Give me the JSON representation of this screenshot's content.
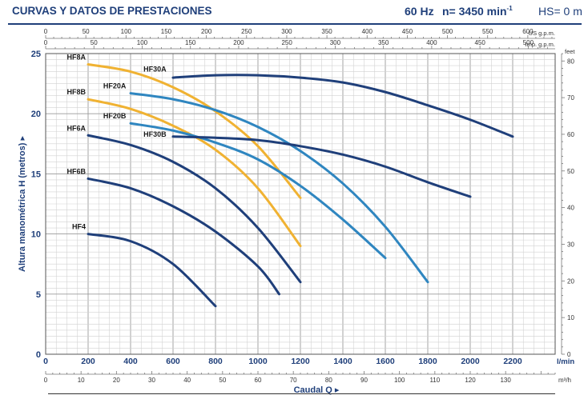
{
  "header": {
    "title": "CURVAS Y DATOS DE PRESTACIONES",
    "frequency": "60 Hz",
    "speed_prefix": "n= 3450 min",
    "speed_exp": "-1",
    "hs": "HS= 0 m"
  },
  "chart_data": {
    "type": "line",
    "title": "CURVAS Y DATOS DE PRESTACIONES",
    "xlabel": "Caudal Q ▸",
    "ylabel": "Altura manométrica H (metros) ▸",
    "xunit": "l/min",
    "xlim": [
      0,
      2400
    ],
    "ylim": [
      0,
      25
    ],
    "grid": true,
    "x_ticks": [
      0,
      200,
      400,
      600,
      800,
      1000,
      1200,
      1400,
      1600,
      1800,
      2000,
      2200
    ],
    "y_ticks": [
      0,
      5,
      10,
      15,
      20,
      25
    ],
    "right_axis": {
      "unit": "feet",
      "ticks": [
        0,
        10,
        20,
        30,
        40,
        50,
        60,
        70,
        80
      ],
      "labels": [
        "0",
        "10",
        "20",
        "30",
        "40",
        "50",
        "60",
        "70",
        "80"
      ]
    },
    "top_axis_us": {
      "unit": "US g.p.m.",
      "ticks": [
        0,
        50,
        100,
        150,
        200,
        250,
        300,
        350,
        400,
        450,
        500,
        550,
        600
      ],
      "labels": [
        "0",
        "50",
        "100",
        "150",
        "200",
        "250",
        "300",
        "350",
        "400",
        "450",
        "500",
        "550",
        "600"
      ]
    },
    "top_axis_imp": {
      "unit": "Imp. g.p.m.",
      "ticks": [
        0,
        50,
        100,
        150,
        200,
        250,
        300,
        350,
        400,
        450,
        500
      ],
      "labels": [
        "0",
        "50",
        "100",
        "150",
        "200",
        "250",
        "300",
        "350",
        "400",
        "450",
        "500"
      ]
    },
    "bottom_axis_m3h": {
      "unit": "m³/h",
      "ticks": [
        0,
        10,
        20,
        30,
        40,
        50,
        60,
        70,
        80,
        90,
        100,
        110,
        120,
        130
      ],
      "labels": [
        "0",
        "10",
        "20",
        "30",
        "40",
        "50",
        "60",
        "70",
        "80",
        "90",
        "100",
        "110",
        "120",
        "130"
      ]
    },
    "series": [
      {
        "name": "HF4",
        "color": "#1f3f7a",
        "x": [
          200,
          400,
          600,
          800
        ],
        "y": [
          10,
          9.4,
          7.5,
          4
        ]
      },
      {
        "name": "HF6B",
        "color": "#1f3f7a",
        "x": [
          200,
          400,
          600,
          800,
          1000,
          1100
        ],
        "y": [
          14.6,
          13.8,
          12.3,
          10.2,
          7.3,
          5
        ]
      },
      {
        "name": "HF6A",
        "color": "#1f3f7a",
        "x": [
          200,
          400,
          600,
          800,
          1000,
          1200
        ],
        "y": [
          18.2,
          17.4,
          16,
          13.8,
          10.5,
          6
        ]
      },
      {
        "name": "HF8B",
        "color": "#f0b232",
        "x": [
          200,
          400,
          600,
          800,
          1000,
          1200
        ],
        "y": [
          21.2,
          20.4,
          19,
          17,
          13.8,
          9
        ]
      },
      {
        "name": "HF8A",
        "color": "#f0b232",
        "x": [
          200,
          400,
          600,
          800,
          1000,
          1200
        ],
        "y": [
          24.1,
          23.5,
          22.2,
          20.2,
          17.3,
          13
        ]
      },
      {
        "name": "HF20B",
        "color": "#2f86c0",
        "x": [
          400,
          600,
          800,
          1000,
          1200,
          1400,
          1600
        ],
        "y": [
          19.2,
          18.6,
          17.6,
          16.2,
          14,
          11.2,
          8
        ]
      },
      {
        "name": "HF20A",
        "color": "#2f86c0",
        "x": [
          400,
          600,
          800,
          1000,
          1200,
          1400,
          1600,
          1800
        ],
        "y": [
          21.7,
          21.2,
          20.3,
          18.9,
          16.9,
          14.2,
          10.6,
          6
        ]
      },
      {
        "name": "HF30B",
        "color": "#1f3f7a",
        "x": [
          600,
          800,
          1000,
          1200,
          1400,
          1600,
          1800,
          2000
        ],
        "y": [
          18.1,
          18,
          17.8,
          17.3,
          16.6,
          15.6,
          14.3,
          13.1
        ]
      },
      {
        "name": "HF30A",
        "color": "#1f3f7a",
        "x": [
          600,
          800,
          1000,
          1200,
          1400,
          1600,
          1800,
          2000,
          2200
        ],
        "y": [
          23,
          23.2,
          23.2,
          23,
          22.6,
          21.8,
          20.7,
          19.5,
          18.1
        ]
      }
    ],
    "series_label_positions": {
      "HF4": [
        200,
        10.2
      ],
      "HF6B": [
        200,
        14.8
      ],
      "HF6A": [
        200,
        18.4
      ],
      "HF8B": [
        200,
        21.4
      ],
      "HF8A": [
        200,
        24.3
      ],
      "HF20B": [
        390,
        19.4
      ],
      "HF20A": [
        390,
        21.9
      ],
      "HF30B": [
        580,
        17.9
      ],
      "HF30A": [
        580,
        23.3
      ]
    }
  }
}
